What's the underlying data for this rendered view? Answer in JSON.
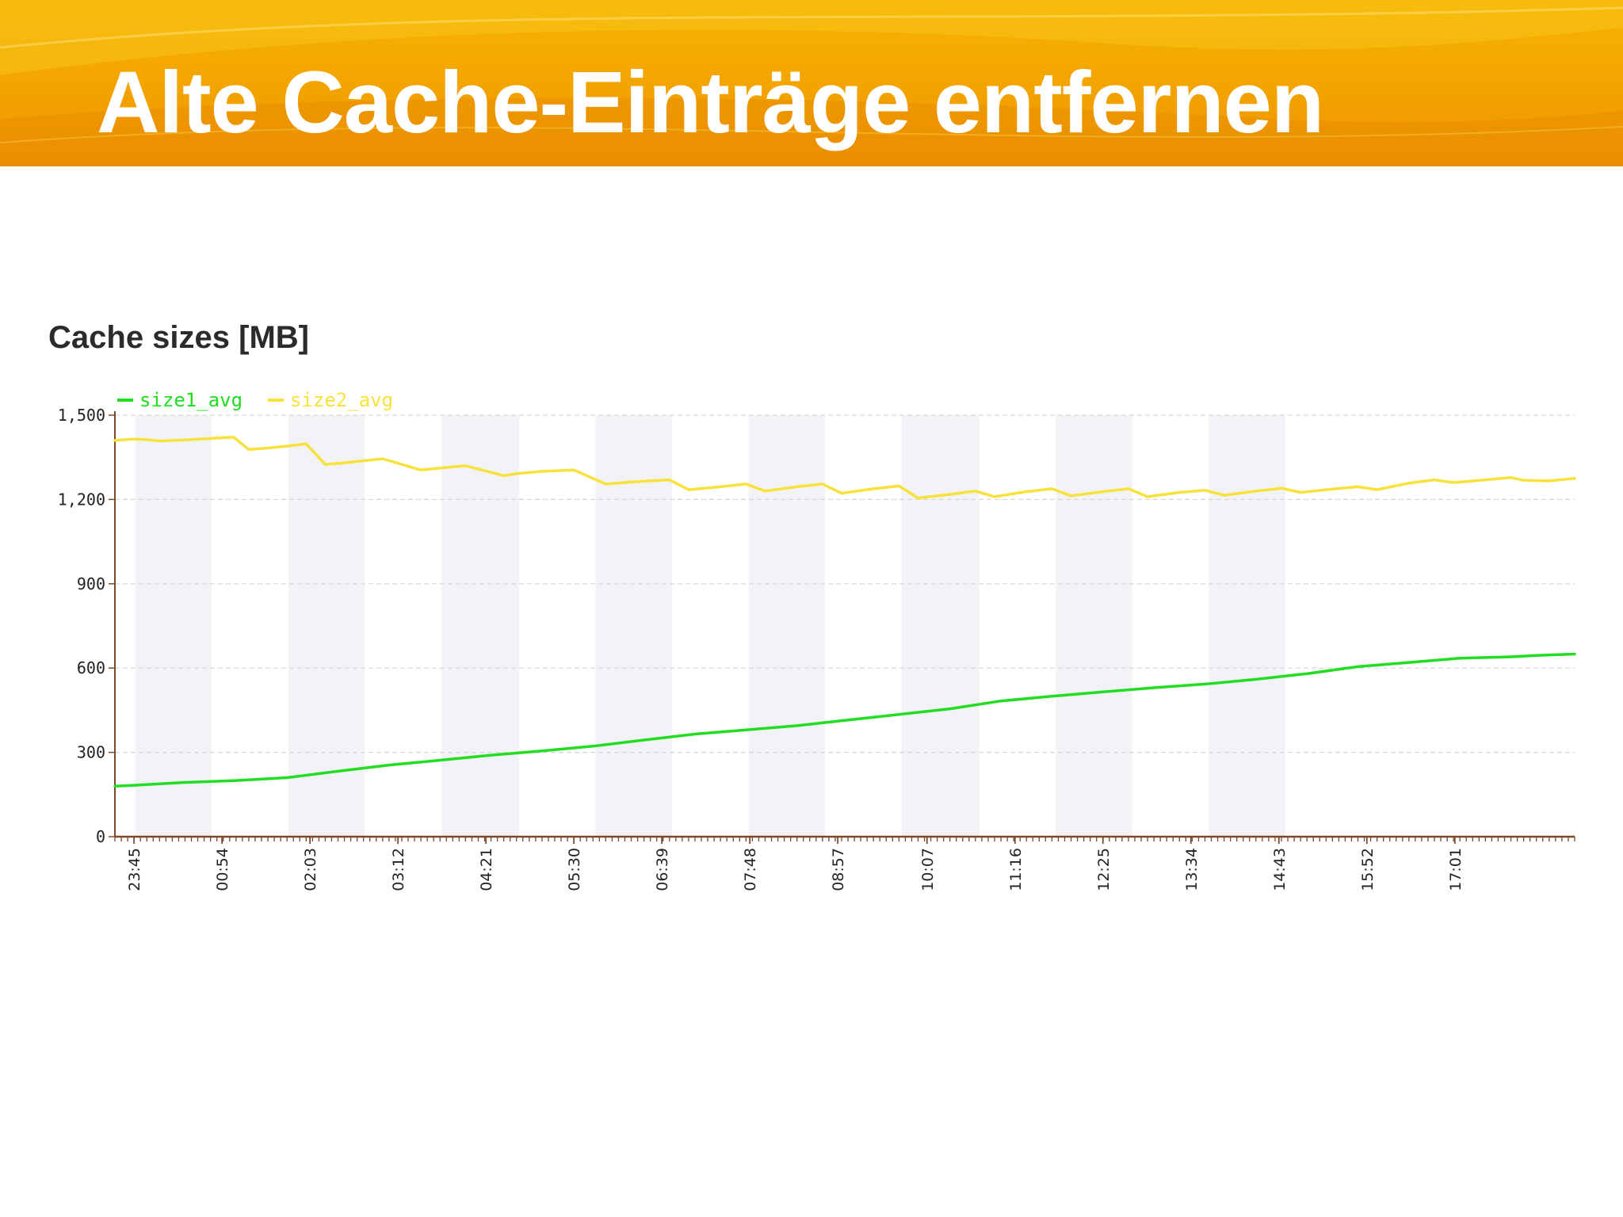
{
  "slide": {
    "title": "Alte Cache-Einträge entfernen"
  },
  "colors": {
    "header": "#f3a300",
    "size1": "#22dd22",
    "size2": "#f7e13a",
    "band": "#f3f2f6",
    "axis": "#7a4a2a",
    "grid": "#d6d6d6"
  },
  "chart_data": {
    "type": "line",
    "title": "Cache sizes [MB]",
    "xlabel": "",
    "ylabel": "",
    "ylim": [
      0,
      1500
    ],
    "yticks": [
      0,
      300,
      600,
      900,
      1200,
      1500
    ],
    "ytick_labels": [
      "0",
      "300",
      "600",
      "900",
      "1,200",
      "1,500"
    ],
    "x_range_minutes": [
      -15,
      1130
    ],
    "xtick_minutes": [
      0,
      69,
      138,
      207,
      276,
      345,
      414,
      483,
      552,
      622,
      691,
      760,
      829,
      898,
      967,
      1036
    ],
    "xtick_labels": [
      "23:45",
      "00:54",
      "02:03",
      "03:12",
      "04:21",
      "05:30",
      "06:39",
      "07:48",
      "08:57",
      "10:07",
      "11:16",
      "12:25",
      "13:34",
      "14:43",
      "15:52",
      "17:01"
    ],
    "background_bands_minutes": [
      [
        1,
        61
      ],
      [
        121,
        181
      ],
      [
        241,
        302
      ],
      [
        362,
        422
      ],
      [
        482,
        542
      ],
      [
        602,
        663
      ],
      [
        723,
        783
      ],
      [
        843,
        903
      ]
    ],
    "legend": "top-left",
    "grid": true,
    "series": [
      {
        "name": "size1_avg",
        "color": "#22dd22",
        "x": [
          -15,
          0,
          40,
          80,
          120,
          160,
          200,
          240,
          280,
          320,
          360,
          400,
          440,
          480,
          520,
          560,
          600,
          640,
          680,
          720,
          760,
          800,
          840,
          880,
          920,
          960,
          1000,
          1040,
          1080,
          1100,
          1130
        ],
        "y": [
          180,
          183,
          193,
          200,
          210,
          233,
          255,
          272,
          290,
          305,
          322,
          344,
          365,
          380,
          395,
          415,
          435,
          455,
          483,
          500,
          515,
          530,
          543,
          560,
          580,
          605,
          620,
          635,
          640,
          645,
          650
        ]
      },
      {
        "name": "size2_avg",
        "color": "#f7e13a",
        "x": [
          -15,
          0,
          10,
          20,
          30,
          40,
          60,
          78,
          90,
          105,
          120,
          135,
          150,
          165,
          180,
          195,
          225,
          240,
          260,
          290,
          300,
          320,
          345,
          370,
          375,
          400,
          420,
          435,
          460,
          480,
          495,
          520,
          540,
          555,
          580,
          600,
          615,
          640,
          660,
          675,
          700,
          720,
          735,
          760,
          780,
          795,
          820,
          840,
          855,
          880,
          900,
          915,
          940,
          960,
          975,
          1000,
          1020,
          1035,
          1060,
          1080,
          1090,
          1110,
          1130
        ],
        "y": [
          1410,
          1415,
          1413,
          1408,
          1410,
          1412,
          1417,
          1422,
          1378,
          1383,
          1390,
          1398,
          1325,
          1330,
          1338,
          1345,
          1305,
          1312,
          1320,
          1285,
          1292,
          1300,
          1305,
          1255,
          1257,
          1265,
          1270,
          1235,
          1245,
          1255,
          1230,
          1245,
          1255,
          1222,
          1238,
          1248,
          1205,
          1218,
          1230,
          1210,
          1228,
          1238,
          1213,
          1228,
          1238,
          1210,
          1225,
          1233,
          1215,
          1230,
          1240,
          1225,
          1237,
          1245,
          1235,
          1258,
          1270,
          1260,
          1270,
          1278,
          1268,
          1266,
          1275
        ]
      }
    ]
  }
}
